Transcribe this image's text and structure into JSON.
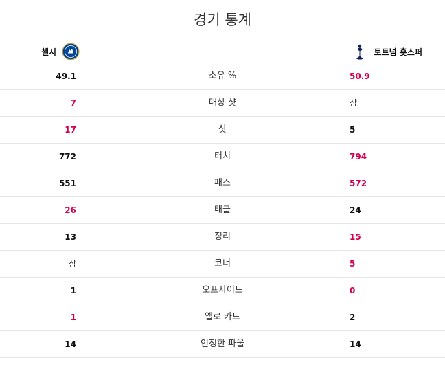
{
  "title": "경기 통계",
  "home_team": {
    "name": "첼시",
    "crest_icon": "chelsea-crest-icon"
  },
  "away_team": {
    "name": "토트넘 홋스퍼",
    "crest_icon": "tottenham-crest-icon"
  },
  "colors": {
    "highlight": "#d10052",
    "divider": "#e6e6e6",
    "chelsea_blue": "#034694",
    "spurs_navy": "#132257"
  },
  "stats": [
    {
      "label": "소유 %",
      "home": "49.1",
      "away": "50.9",
      "highlight": "away"
    },
    {
      "label": "대상 샷",
      "home": "7",
      "away": "삼",
      "highlight": "home",
      "away_plain": true
    },
    {
      "label": "샷",
      "home": "17",
      "away": "5",
      "highlight": "home"
    },
    {
      "label": "터치",
      "home": "772",
      "away": "794",
      "highlight": "away"
    },
    {
      "label": "패스",
      "home": "551",
      "away": "572",
      "highlight": "away"
    },
    {
      "label": "태클",
      "home": "26",
      "away": "24",
      "highlight": "home"
    },
    {
      "label": "정리",
      "home": "13",
      "away": "15",
      "highlight": "away"
    },
    {
      "label": "코너",
      "home": "삼",
      "away": "5",
      "highlight": "away",
      "home_plain": true
    },
    {
      "label": "오프사이드",
      "home": "1",
      "away": "0",
      "highlight": "away"
    },
    {
      "label": "옐로 카드",
      "home": "1",
      "away": "2",
      "highlight": "home"
    },
    {
      "label": "인정한 파울",
      "home": "14",
      "away": "14",
      "highlight": "none"
    }
  ]
}
